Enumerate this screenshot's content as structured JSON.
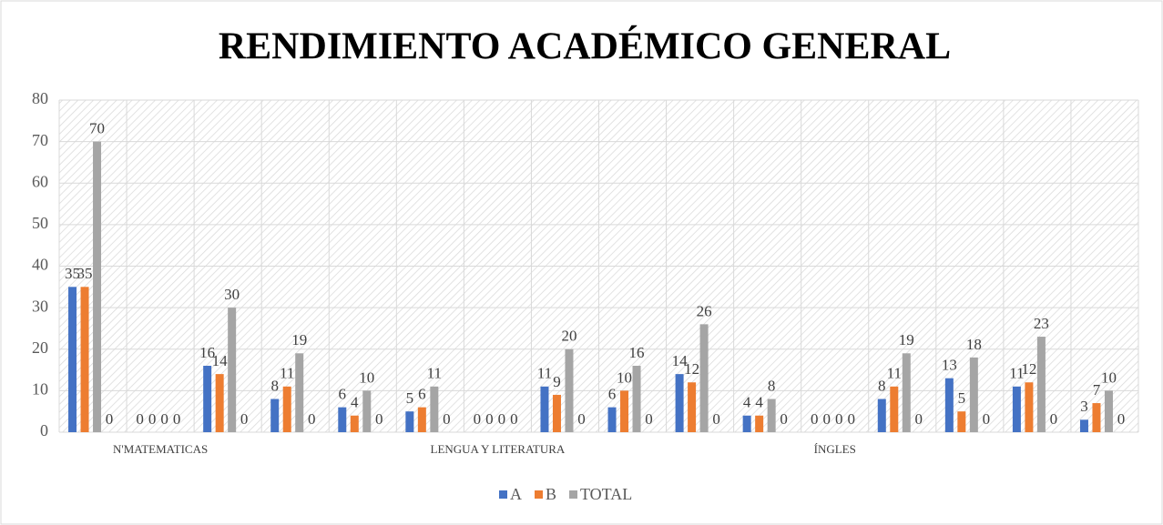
{
  "chart_data": {
    "type": "bar",
    "title": "RENDIMIENTO ACADÉMICO GENERAL",
    "categories": [
      null,
      "N'MATEMATICAS",
      null,
      null,
      null,
      null,
      "LENGUA Y LITERATURA",
      null,
      null,
      null,
      null,
      "ÍNGLES",
      null,
      null,
      null,
      null
    ],
    "series": [
      {
        "name": "A",
        "color": "#4472c4",
        "values": [
          35,
          0,
          16,
          8,
          6,
          5,
          0,
          11,
          6,
          14,
          4,
          0,
          8,
          13,
          11,
          3
        ]
      },
      {
        "name": "B",
        "color": "#ed7d31",
        "values": [
          35,
          0,
          14,
          11,
          4,
          6,
          0,
          9,
          10,
          12,
          4,
          0,
          11,
          5,
          12,
          7
        ]
      },
      {
        "name": "TOTAL",
        "color": "#a5a5a5",
        "values": [
          70,
          0,
          30,
          19,
          10,
          11,
          0,
          20,
          16,
          26,
          8,
          0,
          19,
          18,
          23,
          10
        ]
      },
      {
        "color": "#ffc000",
        "values": [
          0,
          0,
          0,
          0,
          0,
          0,
          0,
          0,
          0,
          0,
          0,
          0,
          0,
          0,
          0,
          0
        ]
      }
    ],
    "ylim": [
      0,
      80
    ],
    "yticks": [
      0,
      10,
      20,
      30,
      40,
      50,
      60,
      70,
      80
    ],
    "grid": true,
    "legend": "bottom"
  }
}
